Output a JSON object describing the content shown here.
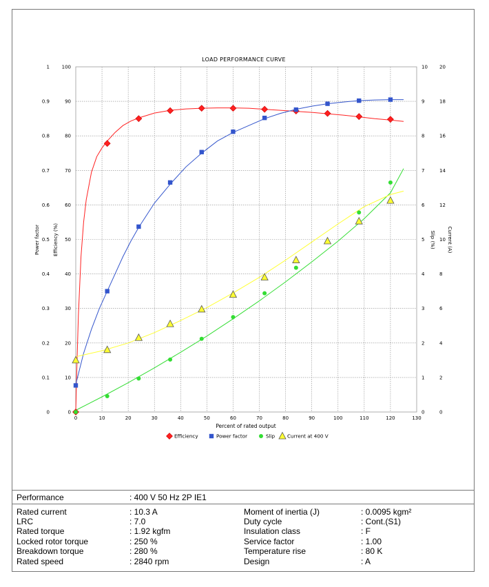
{
  "colors": {
    "efficiency": "#ff2020",
    "power_factor": "#3355cc",
    "slip": "#33dd33",
    "current": "#ffff33",
    "grid": "#888888"
  },
  "chart_data": {
    "type": "line",
    "title": "LOAD PERFORMANCE CURVE",
    "xlabel": "Percent of rated output",
    "xlim": [
      0,
      130
    ],
    "x_ticks": [
      "0",
      "10",
      "20",
      "30",
      "40",
      "50",
      "60",
      "70",
      "80",
      "90",
      "100",
      "110",
      "120",
      "130"
    ],
    "axes": {
      "power_factor": {
        "label": "Power factor",
        "side": "left-outer",
        "lim": [
          0,
          1
        ],
        "ticks": [
          "0",
          "0.1",
          "0.2",
          "0.3",
          "0.4",
          "0.5",
          "0.6",
          "0.7",
          "0.8",
          "0.9",
          "1"
        ]
      },
      "efficiency": {
        "label": "Efficiency (%)",
        "side": "left-inner",
        "lim": [
          0,
          100
        ],
        "ticks": [
          "0",
          "10",
          "20",
          "30",
          "40",
          "50",
          "60",
          "70",
          "80",
          "90",
          "100"
        ]
      },
      "slip": {
        "label": "Slip (%)",
        "side": "right-inner",
        "lim": [
          0,
          10
        ],
        "ticks": [
          "0",
          "1",
          "2",
          "3",
          "4",
          "5",
          "6",
          "7",
          "8",
          "9",
          "10"
        ]
      },
      "current": {
        "label": "Current (A)",
        "side": "right-outer",
        "lim": [
          0,
          20
        ],
        "ticks": [
          "0",
          "2",
          "4",
          "6",
          "8",
          "10",
          "12",
          "14",
          "16",
          "18",
          "20"
        ]
      }
    },
    "grid": true,
    "legend_placement": "bottom-center",
    "series": [
      {
        "name": "Efficiency",
        "axis": "efficiency",
        "marker": "diamond",
        "x": [
          0,
          12,
          24,
          36,
          48,
          60,
          72,
          84,
          96,
          108,
          120
        ],
        "y": [
          0,
          77.8,
          85,
          87.3,
          88,
          88,
          87.7,
          87.2,
          86.5,
          85.6,
          84.8
        ],
        "curve_x": [
          0,
          0.5,
          1,
          2,
          3,
          4,
          6,
          8,
          10,
          12,
          15,
          18,
          21,
          24,
          30,
          36,
          42,
          48,
          54,
          60,
          66,
          72,
          78,
          84,
          90,
          96,
          102,
          108,
          114,
          120,
          125
        ],
        "curve_y": [
          0,
          15,
          28,
          45,
          55,
          61.5,
          69.5,
          74,
          76.5,
          78.5,
          81,
          83,
          84.3,
          85.2,
          86.6,
          87.4,
          87.8,
          88,
          88.1,
          88.1,
          88,
          87.7,
          87.4,
          87.1,
          86.8,
          86.4,
          86,
          85.5,
          85,
          84.6,
          84.2
        ]
      },
      {
        "name": "Power factor",
        "axis": "power_factor",
        "marker": "square",
        "x": [
          0,
          12,
          24,
          36,
          48,
          60,
          72,
          84,
          96,
          108,
          120
        ],
        "y": [
          0.077,
          0.35,
          0.537,
          0.665,
          0.753,
          0.812,
          0.852,
          0.876,
          0.893,
          0.902,
          0.905
        ],
        "curve_x": [
          0,
          3,
          6,
          9,
          12,
          15,
          18,
          21,
          24,
          30,
          36,
          42,
          48,
          54,
          60,
          66,
          72,
          78,
          84,
          90,
          96,
          102,
          108,
          114,
          120,
          125
        ],
        "curve_y": [
          0.08,
          0.17,
          0.24,
          0.3,
          0.35,
          0.4,
          0.45,
          0.495,
          0.535,
          0.605,
          0.66,
          0.71,
          0.75,
          0.785,
          0.81,
          0.83,
          0.85,
          0.865,
          0.877,
          0.886,
          0.893,
          0.898,
          0.902,
          0.904,
          0.905,
          0.905
        ]
      },
      {
        "name": "Slip",
        "axis": "slip",
        "marker": "circle",
        "x": [
          0,
          12,
          24,
          36,
          48,
          60,
          72,
          84,
          96,
          108,
          120
        ],
        "y": [
          0,
          0.46,
          0.97,
          1.52,
          2.12,
          2.75,
          3.44,
          4.18,
          4.95,
          5.78,
          6.65
        ],
        "curve_x": [
          0,
          10,
          20,
          30,
          40,
          50,
          60,
          70,
          80,
          90,
          100,
          110,
          120,
          125
        ],
        "curve_y": [
          0.05,
          0.44,
          0.85,
          1.28,
          1.73,
          2.2,
          2.7,
          3.22,
          3.77,
          4.35,
          4.95,
          5.6,
          6.35,
          7.05
        ]
      },
      {
        "name": "Current at 400 V",
        "axis": "current",
        "marker": "triangle",
        "x": [
          0,
          12,
          24,
          36,
          48,
          60,
          72,
          84,
          96,
          108,
          120
        ],
        "y": [
          3,
          3.6,
          4.3,
          5.1,
          5.95,
          6.8,
          7.8,
          8.8,
          9.9,
          11.05,
          12.25
        ],
        "curve_x": [
          0,
          10,
          20,
          30,
          40,
          50,
          60,
          70,
          80,
          90,
          100,
          110,
          120,
          125
        ],
        "curve_y": [
          3.2,
          3.55,
          4.0,
          4.6,
          5.3,
          6.05,
          6.9,
          7.8,
          8.8,
          9.85,
          10.9,
          11.9,
          12.6,
          12.8
        ]
      }
    ]
  },
  "table": {
    "performance_label": "Performance",
    "performance_value": ": 400 V 50 Hz 2P IE1",
    "left": [
      {
        "label": "Rated current",
        "value": ": 10.3 A"
      },
      {
        "label": "LRC",
        "value": ": 7.0"
      },
      {
        "label": "Rated torque",
        "value": ": 1.92 kgfm"
      },
      {
        "label": "Locked rotor torque",
        "value": ": 250 %"
      },
      {
        "label": "Breakdown torque",
        "value": ": 280 %"
      },
      {
        "label": "Rated speed",
        "value": ": 2840 rpm"
      }
    ],
    "right": [
      {
        "label": "Moment of inertia (J)",
        "value": ": 0.0095 kgm²"
      },
      {
        "label": "Duty cycle",
        "value": ": Cont.(S1)"
      },
      {
        "label": "Insulation class",
        "value": ": F"
      },
      {
        "label": "Service factor",
        "value": ": 1.00"
      },
      {
        "label": "Temperature rise",
        "value": ": 80 K"
      },
      {
        "label": "Design",
        "value": ": A"
      }
    ]
  }
}
